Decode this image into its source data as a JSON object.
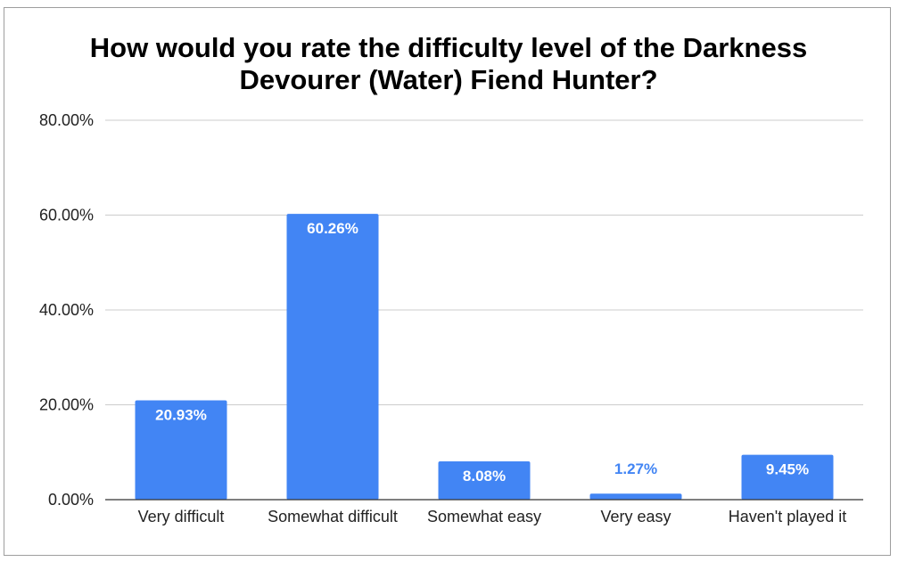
{
  "chart_data": {
    "type": "bar",
    "title_lines": [
      "How would you rate the difficulty level of the Darkness",
      "Devourer (Water) Fiend Hunter?"
    ],
    "categories": [
      "Very difficult",
      "Somewhat difficult",
      "Somewhat easy",
      "Very easy",
      "Haven't played it"
    ],
    "values": [
      20.93,
      60.26,
      8.08,
      1.27,
      9.45
    ],
    "data_labels": [
      "20.93%",
      "60.26%",
      "8.08%",
      "1.27%",
      "9.45%"
    ],
    "y_ticks": [
      "0.00%",
      "20.00%",
      "40.00%",
      "60.00%",
      "80.00%"
    ],
    "ylim": [
      0,
      80
    ],
    "xlabel": "",
    "ylabel": "",
    "grid": true,
    "legend": "none",
    "colors": {
      "bar": "#4285f4",
      "label_inside": "#ffffff",
      "label_outside": "#4285f4",
      "grid": "#cccccc",
      "axis": "#333333"
    }
  }
}
